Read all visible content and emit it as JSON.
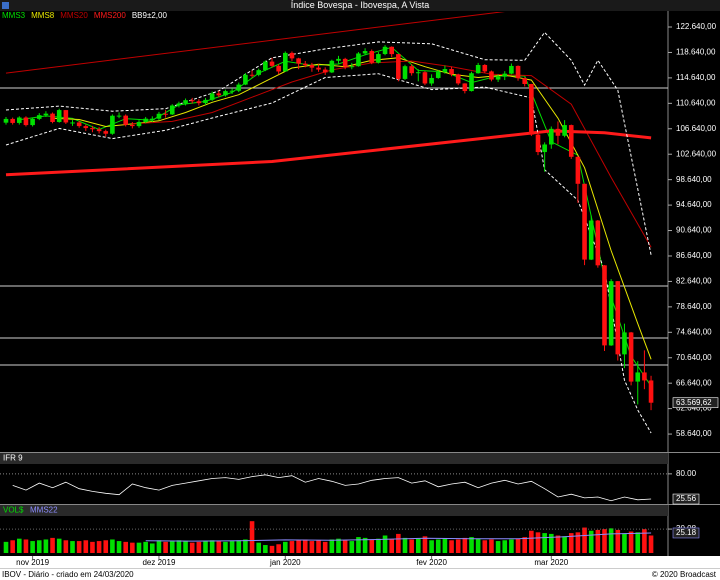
{
  "title": "Índice Bovespa - Ibovespa, A Vista",
  "footer_left": "IBOV - Diário - criado em 24/03/2020",
  "footer_right": "© 2020 Broadcast",
  "chart_data": [
    {
      "type": "candlestick",
      "up_color": "#00e000",
      "down_color": "#ff1010",
      "open": [
        107600,
        108190,
        107560,
        108410,
        107220,
        108200,
        108780,
        109020,
        107710,
        109580,
        107500,
        107630,
        107060,
        106750,
        106560,
        106270,
        105860,
        108690,
        108710,
        107250,
        107060,
        107710,
        108000,
        108230,
        109000,
        108900,
        110300,
        110620,
        111130,
        110970,
        110670,
        111190,
        112200,
        111900,
        112560,
        112620,
        113590,
        115130,
        115120,
        115860,
        117200,
        116530,
        115650,
        118570,
        117710,
        116880,
        116660,
        116250,
        115950,
        115500,
        117330,
        117630,
        116410,
        116480,
        118480,
        118860,
        117030,
        118390,
        119530,
        118380,
        114480,
        116480,
        115380,
        115530,
        113760,
        114630,
        115560,
        116030,
        115190,
        113770,
        112570,
        115370,
        116670,
        115660,
        114380,
        114830,
        115310,
        116520,
        114590,
        113680,
        105720,
        102980,
        104170,
        106630,
        105540,
        107220,
        102230,
        97990,
        86070,
        92210,
        85170,
        72580,
        82680,
        71170,
        74620,
        66890,
        68330,
        67070
      ],
      "high": [
        108500,
        108400,
        108600,
        108600,
        108400,
        109100,
        109400,
        109200,
        109800,
        109600,
        108000,
        107900,
        107300,
        107100,
        106900,
        106500,
        108900,
        109200,
        108900,
        107700,
        108000,
        108500,
        108600,
        109300,
        109600,
        110500,
        110900,
        111400,
        111500,
        111300,
        111500,
        112500,
        112600,
        112800,
        113000,
        113900,
        115400,
        115800,
        116100,
        117400,
        117800,
        116800,
        118800,
        118800,
        117800,
        117300,
        117000,
        116800,
        116300,
        117500,
        118100,
        117800,
        117000,
        118700,
        119300,
        119100,
        118700,
        119800,
        119600,
        118400,
        116700,
        116800,
        116000,
        115700,
        115200,
        115900,
        116600,
        116400,
        115300,
        113800,
        115600,
        117000,
        116800,
        115800,
        115200,
        115700,
        116900,
        116600,
        114700,
        113700,
        106200,
        104500,
        107000,
        107800,
        108000,
        107300,
        102300,
        97990,
        93000,
        92300,
        85200,
        83000,
        82700,
        76000,
        74700,
        70100,
        71800,
        67800
      ],
      "low": [
        107300,
        107300,
        107300,
        107000,
        107000,
        108000,
        108500,
        107500,
        107600,
        107400,
        107100,
        106800,
        106300,
        106100,
        105900,
        105400,
        105700,
        108300,
        107000,
        106700,
        106800,
        107500,
        107700,
        108000,
        108400,
        108800,
        110000,
        110300,
        110600,
        110300,
        110400,
        111000,
        111600,
        111700,
        112100,
        112400,
        113500,
        114700,
        114900,
        115700,
        116300,
        115200,
        115600,
        117300,
        116000,
        116300,
        115600,
        115600,
        115100,
        115400,
        116900,
        116000,
        116000,
        116400,
        118200,
        116800,
        116900,
        118200,
        117900,
        114100,
        114300,
        115000,
        114100,
        113500,
        113400,
        114500,
        115300,
        114900,
        113500,
        112200,
        112500,
        115300,
        115400,
        114100,
        114000,
        114300,
        115200,
        114200,
        113300,
        105500,
        102500,
        99900,
        103500,
        104200,
        105300,
        101900,
        95000,
        85200,
        86000,
        84800,
        71700,
        72500,
        70200,
        69000,
        66300,
        63300,
        65700,
        62400
      ],
      "close": [
        108190,
        107560,
        108410,
        107220,
        108200,
        108780,
        109020,
        107710,
        109580,
        107630,
        107630,
        107060,
        106750,
        106560,
        106270,
        105860,
        108690,
        108710,
        107250,
        107060,
        107710,
        108230,
        108230,
        109000,
        108900,
        110300,
        110620,
        111130,
        110970,
        110670,
        111190,
        112200,
        111900,
        112560,
        112620,
        113590,
        115130,
        115120,
        115860,
        117200,
        116530,
        115650,
        118570,
        117710,
        116880,
        116660,
        116250,
        115950,
        115500,
        117330,
        117630,
        116410,
        116480,
        118480,
        118860,
        117030,
        118390,
        119530,
        118380,
        114480,
        116480,
        115380,
        115530,
        113760,
        114630,
        115560,
        116030,
        115190,
        113770,
        112570,
        115370,
        116670,
        115660,
        114380,
        114830,
        115310,
        116520,
        114590,
        113680,
        105720,
        102980,
        104170,
        106630,
        105540,
        107220,
        102230,
        97990,
        86070,
        92210,
        85170,
        72580,
        82680,
        71170,
        74620,
        66890,
        68330,
        67070,
        63569.62
      ],
      "last_close_label": "63.569,62",
      "ylim": [
        55820,
        125000
      ],
      "yticks": [
        {
          "value": 122640,
          "label": "122.640,00"
        },
        {
          "value": 118640,
          "label": "118.640,00"
        },
        {
          "value": 114640,
          "label": "114.640,00"
        },
        {
          "value": 110640,
          "label": "110.640,00"
        },
        {
          "value": 106640,
          "label": "106.640,00"
        },
        {
          "value": 102640,
          "label": "102.640,00"
        },
        {
          "value": 98640,
          "label": "98.640,00"
        },
        {
          "value": 94640,
          "label": "94.640,00"
        },
        {
          "value": 90640,
          "label": "90.640,00"
        },
        {
          "value": 86640,
          "label": "86.640,00"
        },
        {
          "value": 82640,
          "label": "82.640,00"
        },
        {
          "value": 78640,
          "label": "78.640,00"
        },
        {
          "value": 74640,
          "label": "74.640,00"
        },
        {
          "value": 70640,
          "label": "70.640,00"
        },
        {
          "value": 66640,
          "label": "66.640,00"
        },
        {
          "value": 62640,
          "label": "62.640,00"
        },
        {
          "value": 58640,
          "label": "58.640,00"
        }
      ],
      "xticks": [
        {
          "value": 4,
          "label": "nov 2019"
        },
        {
          "value": 23,
          "label": "dez 2019"
        },
        {
          "value": 42,
          "label": "jan 2020"
        },
        {
          "value": 64,
          "label": "fev 2020"
        },
        {
          "value": 82,
          "label": "mar 2020"
        }
      ],
      "hlines": [
        113050,
        81920,
        73740,
        69490
      ],
      "trendline": {
        "color": "#c00000",
        "x": [
          0,
          76
        ],
        "values": [
          115400,
          125200
        ]
      },
      "series": [
        {
          "name": "MMS3",
          "color": "#00e000",
          "width": 1,
          "lines": [
            {
              "x": [
                2,
                6,
                10,
                14,
                18,
                22,
                26,
                30,
                34,
                38,
                42,
                46,
                50,
                54,
                58,
                62,
                66,
                70,
                74,
                78,
                82,
                86,
                90,
                94,
                97
              ],
              "values": [
                108050,
                108670,
                108270,
                106520,
                108220,
                107990,
                110400,
                110940,
                112360,
                115370,
                117250,
                116600,
                116820,
                118270,
                119430,
                115800,
                115590,
                113900,
                114960,
                114930,
                104590,
                102480,
                83320,
                70900,
                66160
              ]
            }
          ]
        },
        {
          "name": "MMS8",
          "color": "#e8e800",
          "width": 1,
          "lines": [
            {
              "x": [
                7,
                11,
                15,
                19,
                23,
                27,
                31,
                35,
                39,
                43,
                47,
                51,
                55,
                59,
                63,
                67,
                71,
                75,
                79,
                83,
                87,
                91,
                95,
                97
              ],
              "values": [
                108300,
                108100,
                107000,
                107400,
                107900,
                109200,
                110800,
                112000,
                114100,
                116200,
                116800,
                116400,
                117400,
                117800,
                116400,
                115200,
                114700,
                115100,
                114300,
                108300,
                100500,
                87500,
                76000,
                70400
              ]
            }
          ]
        },
        {
          "name": "MMS20",
          "color": "#c00000",
          "width": 1,
          "lines": [
            {
              "x": [
                19,
                25,
                31,
                37,
                43,
                49,
                55,
                61,
                67,
                73,
                79,
                85,
                91,
                97
              ],
              "values": [
                107400,
                107800,
                109200,
                111600,
                114000,
                115900,
                117000,
                117300,
                116400,
                115200,
                115000,
                110500,
                99000,
                88000
              ]
            }
          ]
        },
        {
          "name": "MMS200",
          "color": "#ff1a1a",
          "width": 3,
          "lines": [
            {
              "x": [
                0,
                40,
                82,
                90,
                97
              ],
              "values": [
                99400,
                101500,
                106300,
                106000,
                105200
              ]
            }
          ]
        },
        {
          "name": "BB9±2,00",
          "color": "#ffffff",
          "width": 1,
          "dash": true,
          "lines": [
            {
              "x": [
                0,
                8,
                16,
                24,
                32,
                40,
                48,
                56,
                64,
                72,
                78,
                81,
                85,
                87,
                89,
                92,
                97
              ],
              "values": [
                109590,
                110200,
                109400,
                109800,
                112600,
                117800,
                119200,
                120300,
                120000,
                117500,
                117400,
                121800,
                117400,
                113500,
                117400,
                112700,
                86800
              ]
            },
            {
              "x": [
                0,
                8,
                16,
                24,
                32,
                40,
                48,
                56,
                64,
                72,
                79,
                81,
                86,
                90,
                93,
                95,
                97
              ],
              "values": [
                104090,
                106700,
                105100,
                106400,
                108600,
                110700,
                114700,
                115300,
                112800,
                113200,
                111500,
                100200,
                95400,
                84400,
                67100,
                62400,
                58800
              ]
            }
          ]
        }
      ]
    },
    {
      "type": "line",
      "title": "IFR 9",
      "color": "#ffffff",
      "x": [
        1,
        3,
        5,
        7,
        9,
        11,
        13,
        15,
        17,
        19,
        21,
        23,
        25,
        27,
        29,
        31,
        33,
        35,
        37,
        39,
        41,
        43,
        45,
        47,
        49,
        51,
        53,
        55,
        57,
        59,
        61,
        63,
        65,
        67,
        69,
        71,
        73,
        75,
        77,
        79,
        81,
        83,
        85,
        87,
        89,
        91,
        93,
        95,
        97
      ],
      "values": [
        55,
        45,
        60,
        50,
        62,
        48,
        42,
        38,
        35,
        58,
        50,
        45,
        55,
        60,
        65,
        70,
        72,
        68,
        74,
        78,
        72,
        76,
        62,
        70,
        64,
        55,
        58,
        66,
        70,
        72,
        60,
        65,
        52,
        58,
        62,
        50,
        60,
        66,
        58,
        64,
        48,
        30,
        36,
        28,
        30,
        22,
        30,
        24,
        25.56
      ],
      "ylim": [
        17,
        97
      ],
      "yticks": [
        {
          "value": 80,
          "label": "80.00"
        }
      ]
    },
    {
      "type": "bar",
      "name": "VOL$",
      "values": [
        14,
        16,
        18,
        17,
        15,
        16,
        17,
        19,
        18,
        16,
        15,
        15,
        16,
        14,
        15,
        16,
        17,
        15,
        14,
        13,
        13,
        14,
        12,
        16,
        14,
        15,
        16,
        15,
        13,
        14,
        15,
        16,
        15,
        14,
        15,
        16,
        17,
        40,
        13,
        10,
        9,
        11,
        14,
        15,
        16,
        17,
        15,
        16,
        14,
        17,
        18,
        16,
        15,
        20,
        19,
        17,
        18,
        22,
        17,
        24,
        19,
        17,
        18,
        21,
        16,
        17,
        18,
        16,
        17,
        19,
        20,
        18,
        16,
        17,
        15,
        16,
        17,
        18,
        20,
        28,
        26,
        25,
        24,
        22,
        21,
        25,
        26,
        32,
        28,
        29,
        30,
        31,
        29,
        24,
        27,
        26,
        30,
        22
      ],
      "ylim": [
        0,
        44
      ],
      "yticks": [
        30.08
      ],
      "series": [
        {
          "name": "MMS22",
          "color": "#8c8cff",
          "x": [
            21,
            28,
            35,
            42,
            49,
            56,
            63,
            70,
            77,
            84,
            91,
            97
          ],
          "values": [
            15.5,
            15,
            15.3,
            16.5,
            16,
            17,
            18.5,
            18,
            17.8,
            20.5,
            24,
            25.18
          ]
        }
      ]
    }
  ]
}
